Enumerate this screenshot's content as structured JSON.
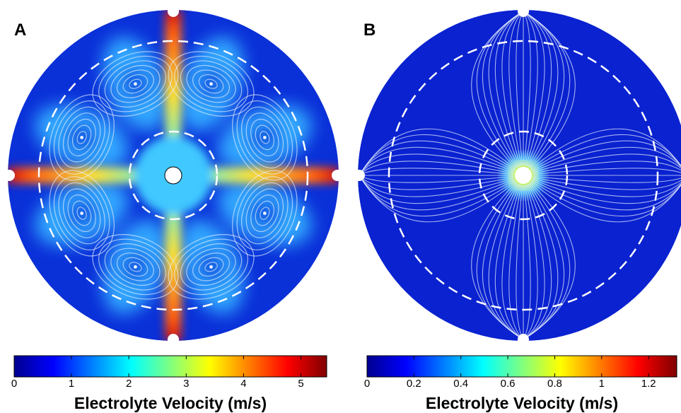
{
  "panels": [
    {
      "label": "A",
      "colorbar": {
        "title": "Electrolyte Velocity (m/s)",
        "lim": [
          0,
          5.45
        ],
        "ticks": [
          0,
          1,
          2,
          3,
          4,
          5
        ]
      }
    },
    {
      "label": "B",
      "colorbar": {
        "title": "Electrolyte Velocity (m/s)",
        "lim": [
          0,
          1.32
        ],
        "ticks": [
          0,
          0.2,
          0.4,
          0.6,
          0.8,
          1,
          1.2
        ]
      }
    }
  ]
}
